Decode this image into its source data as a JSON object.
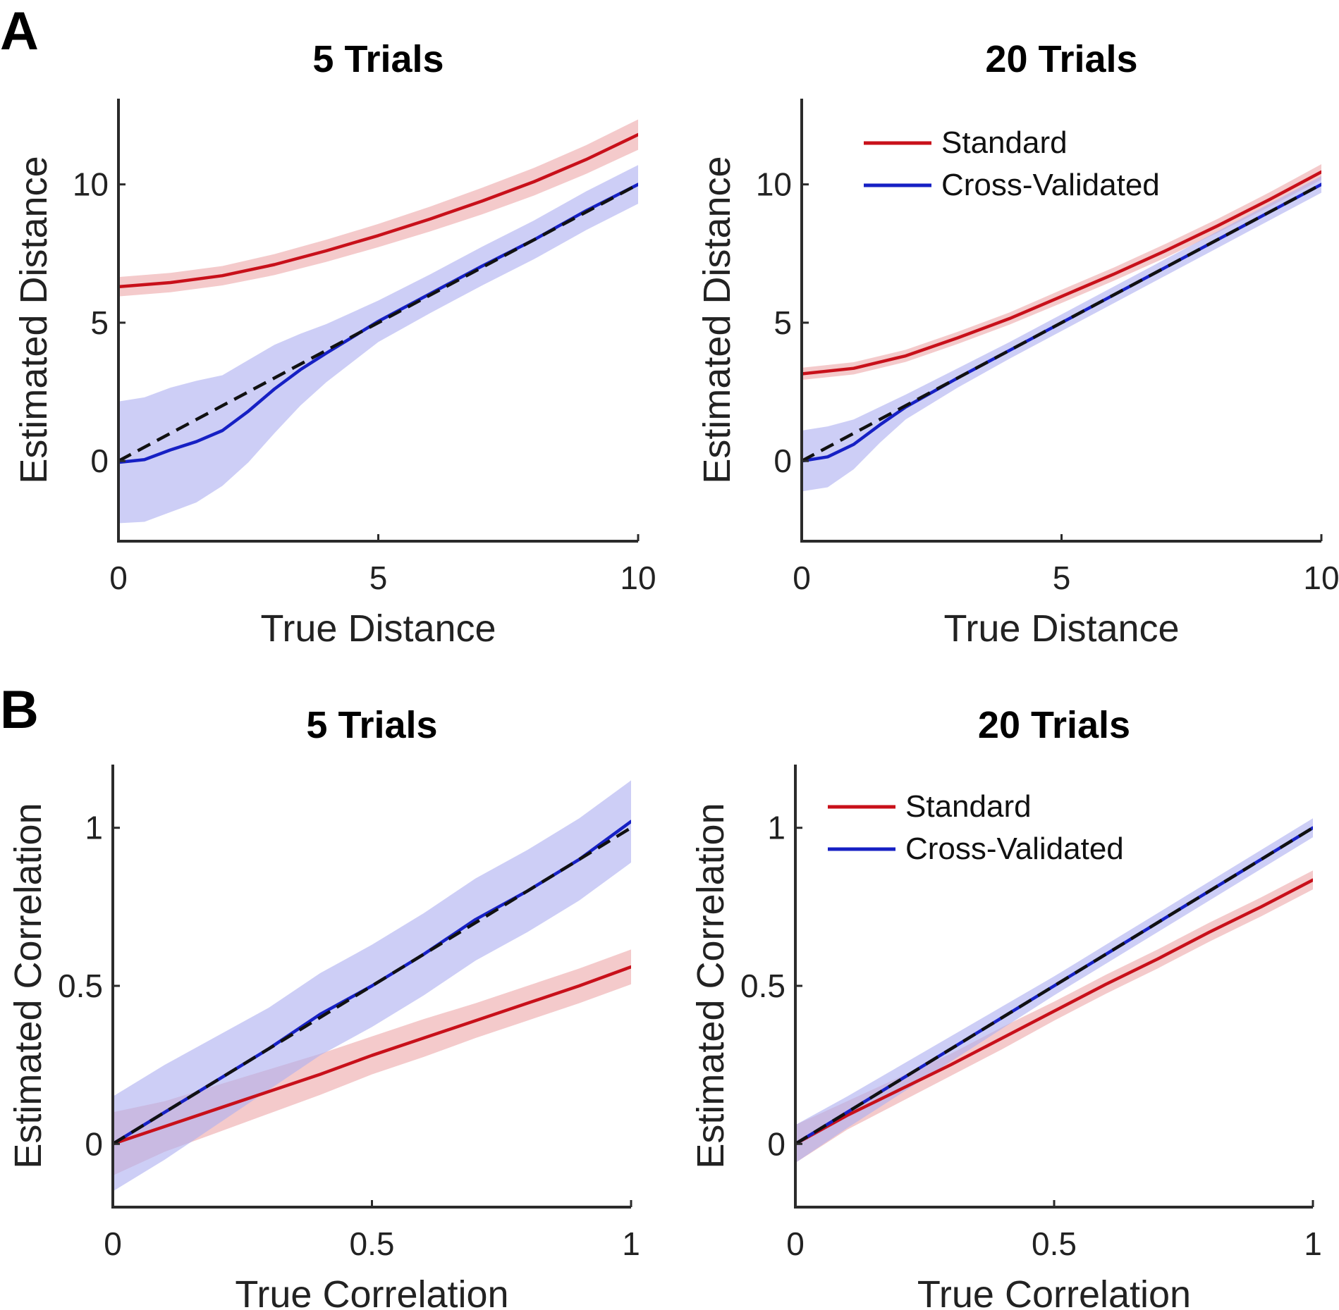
{
  "panel_labels": [
    "A",
    "B"
  ],
  "colors": {
    "standard": "#c8101a",
    "standard_band": "#eea9ab",
    "cross_validated": "#1620c4",
    "cross_validated_band": "#aeb0f0",
    "identity": "#111111",
    "axis": "#2b2b2b"
  },
  "chart_data": [
    {
      "type": "line",
      "panel": "A",
      "title": "5 Trials",
      "xlabel": "True Distance",
      "ylabel": "Estimated Distance",
      "xlim": [
        0,
        10
      ],
      "ylim": [
        -2.9,
        13.1
      ],
      "xticks": [
        0,
        5,
        10
      ],
      "xtick_labels": [
        "0",
        "5",
        "10"
      ],
      "yticks": [
        0,
        5,
        10
      ],
      "ytick_labels": [
        "0",
        "5",
        "10"
      ],
      "legend": null,
      "identity_line": true,
      "series": [
        {
          "name": "Standard",
          "color_key": "standard",
          "x": [
            0,
            1,
            2,
            3,
            4,
            5,
            6,
            7,
            8,
            9,
            10
          ],
          "y": [
            6.3,
            6.45,
            6.7,
            7.1,
            7.6,
            8.15,
            8.75,
            9.4,
            10.1,
            10.9,
            11.8
          ],
          "band": [
            0.35,
            0.35,
            0.35,
            0.38,
            0.4,
            0.42,
            0.45,
            0.48,
            0.5,
            0.52,
            0.55
          ]
        },
        {
          "name": "Cross-Validated",
          "color_key": "cross_validated",
          "x": [
            0,
            0.5,
            1,
            1.5,
            2,
            2.5,
            3,
            3.5,
            4,
            5,
            6,
            7,
            8,
            9,
            10
          ],
          "y": [
            -0.05,
            0.05,
            0.4,
            0.7,
            1.1,
            1.8,
            2.6,
            3.3,
            3.9,
            5.05,
            6.05,
            7.05,
            8.0,
            9.05,
            10.0
          ],
          "band": [
            2.2,
            2.25,
            2.25,
            2.2,
            2.0,
            1.85,
            1.6,
            1.3,
            1.05,
            0.75,
            0.7,
            0.7,
            0.7,
            0.7,
            0.7
          ]
        }
      ]
    },
    {
      "type": "line",
      "panel": "A",
      "title": "20 Trials",
      "xlabel": "True Distance",
      "ylabel": "Estimated Distance",
      "xlim": [
        0,
        10
      ],
      "ylim": [
        -2.9,
        13.1
      ],
      "xticks": [
        0,
        5,
        10
      ],
      "xtick_labels": [
        "0",
        "5",
        "10"
      ],
      "yticks": [
        0,
        5,
        10
      ],
      "ytick_labels": [
        "0",
        "5",
        "10"
      ],
      "legend": "top-left",
      "identity_line": true,
      "series": [
        {
          "name": "Standard",
          "color_key": "standard",
          "x": [
            0,
            1,
            2,
            3,
            4,
            5,
            6,
            7,
            8,
            9,
            10
          ],
          "y": [
            3.15,
            3.35,
            3.8,
            4.45,
            5.15,
            5.95,
            6.75,
            7.6,
            8.5,
            9.45,
            10.45
          ],
          "band": [
            0.22,
            0.22,
            0.22,
            0.22,
            0.22,
            0.24,
            0.24,
            0.25,
            0.25,
            0.26,
            0.28
          ]
        },
        {
          "name": "Cross-Validated",
          "color_key": "cross_validated",
          "x": [
            0,
            0.5,
            1,
            1.5,
            2,
            3,
            4,
            5,
            6,
            7,
            8,
            9,
            10
          ],
          "y": [
            0.0,
            0.15,
            0.6,
            1.3,
            1.95,
            3.0,
            4.0,
            5.0,
            6.0,
            7.0,
            8.0,
            9.0,
            10.0
          ],
          "band": [
            1.1,
            1.1,
            0.9,
            0.65,
            0.45,
            0.35,
            0.3,
            0.3,
            0.3,
            0.3,
            0.3,
            0.3,
            0.3
          ]
        }
      ]
    },
    {
      "type": "line",
      "panel": "B",
      "title": "5 Trials",
      "xlabel": "True Correlation",
      "ylabel": "Estimated Correlation",
      "xlim": [
        0,
        1
      ],
      "ylim": [
        -0.2,
        1.2
      ],
      "xticks": [
        0,
        0.5,
        1
      ],
      "xtick_labels": [
        "0",
        "0.5",
        "1"
      ],
      "yticks": [
        0,
        0.5,
        1
      ],
      "ytick_labels": [
        "0",
        "0.5",
        "1"
      ],
      "legend": null,
      "identity_line": true,
      "series": [
        {
          "name": "Standard",
          "color_key": "standard",
          "x": [
            0,
            0.1,
            0.2,
            0.3,
            0.4,
            0.5,
            0.6,
            0.7,
            0.8,
            0.9,
            1.0
          ],
          "y": [
            0.0,
            0.055,
            0.11,
            0.165,
            0.22,
            0.28,
            0.335,
            0.39,
            0.445,
            0.5,
            0.56
          ],
          "band": [
            0.1,
            0.08,
            0.075,
            0.07,
            0.065,
            0.06,
            0.06,
            0.055,
            0.055,
            0.055,
            0.055
          ]
        },
        {
          "name": "Cross-Validated",
          "color_key": "cross_validated",
          "x": [
            0,
            0.1,
            0.2,
            0.3,
            0.4,
            0.5,
            0.6,
            0.7,
            0.8,
            0.9,
            1.0
          ],
          "y": [
            0.0,
            0.1,
            0.2,
            0.3,
            0.41,
            0.5,
            0.6,
            0.71,
            0.8,
            0.9,
            1.02
          ],
          "band": [
            0.15,
            0.15,
            0.14,
            0.13,
            0.13,
            0.13,
            0.13,
            0.13,
            0.13,
            0.13,
            0.13
          ]
        }
      ]
    },
    {
      "type": "line",
      "panel": "B",
      "title": "20 Trials",
      "xlabel": "True Correlation",
      "ylabel": "Estimated Correlation",
      "xlim": [
        0,
        1
      ],
      "ylim": [
        -0.2,
        1.2
      ],
      "xticks": [
        0,
        0.5,
        1
      ],
      "xtick_labels": [
        "0",
        "0.5",
        "1"
      ],
      "yticks": [
        0,
        0.5,
        1
      ],
      "ytick_labels": [
        "0",
        "0.5",
        "1"
      ],
      "legend": "top-left",
      "identity_line": true,
      "series": [
        {
          "name": "Standard",
          "color_key": "standard",
          "x": [
            0,
            0.1,
            0.2,
            0.3,
            0.4,
            0.5,
            0.6,
            0.7,
            0.8,
            0.9,
            1.0
          ],
          "y": [
            0.0,
            0.09,
            0.17,
            0.25,
            0.335,
            0.42,
            0.505,
            0.585,
            0.67,
            0.75,
            0.835
          ],
          "band": [
            0.06,
            0.045,
            0.04,
            0.035,
            0.035,
            0.03,
            0.03,
            0.03,
            0.03,
            0.03,
            0.03
          ]
        },
        {
          "name": "Cross-Validated",
          "color_key": "cross_validated",
          "x": [
            0,
            0.1,
            0.2,
            0.3,
            0.4,
            0.5,
            0.6,
            0.7,
            0.8,
            0.9,
            1.0
          ],
          "y": [
            0.0,
            0.1,
            0.2,
            0.3,
            0.4,
            0.5,
            0.6,
            0.7,
            0.8,
            0.9,
            1.0
          ],
          "band": [
            0.06,
            0.05,
            0.045,
            0.04,
            0.035,
            0.03,
            0.03,
            0.03,
            0.03,
            0.03,
            0.03
          ]
        }
      ]
    }
  ]
}
